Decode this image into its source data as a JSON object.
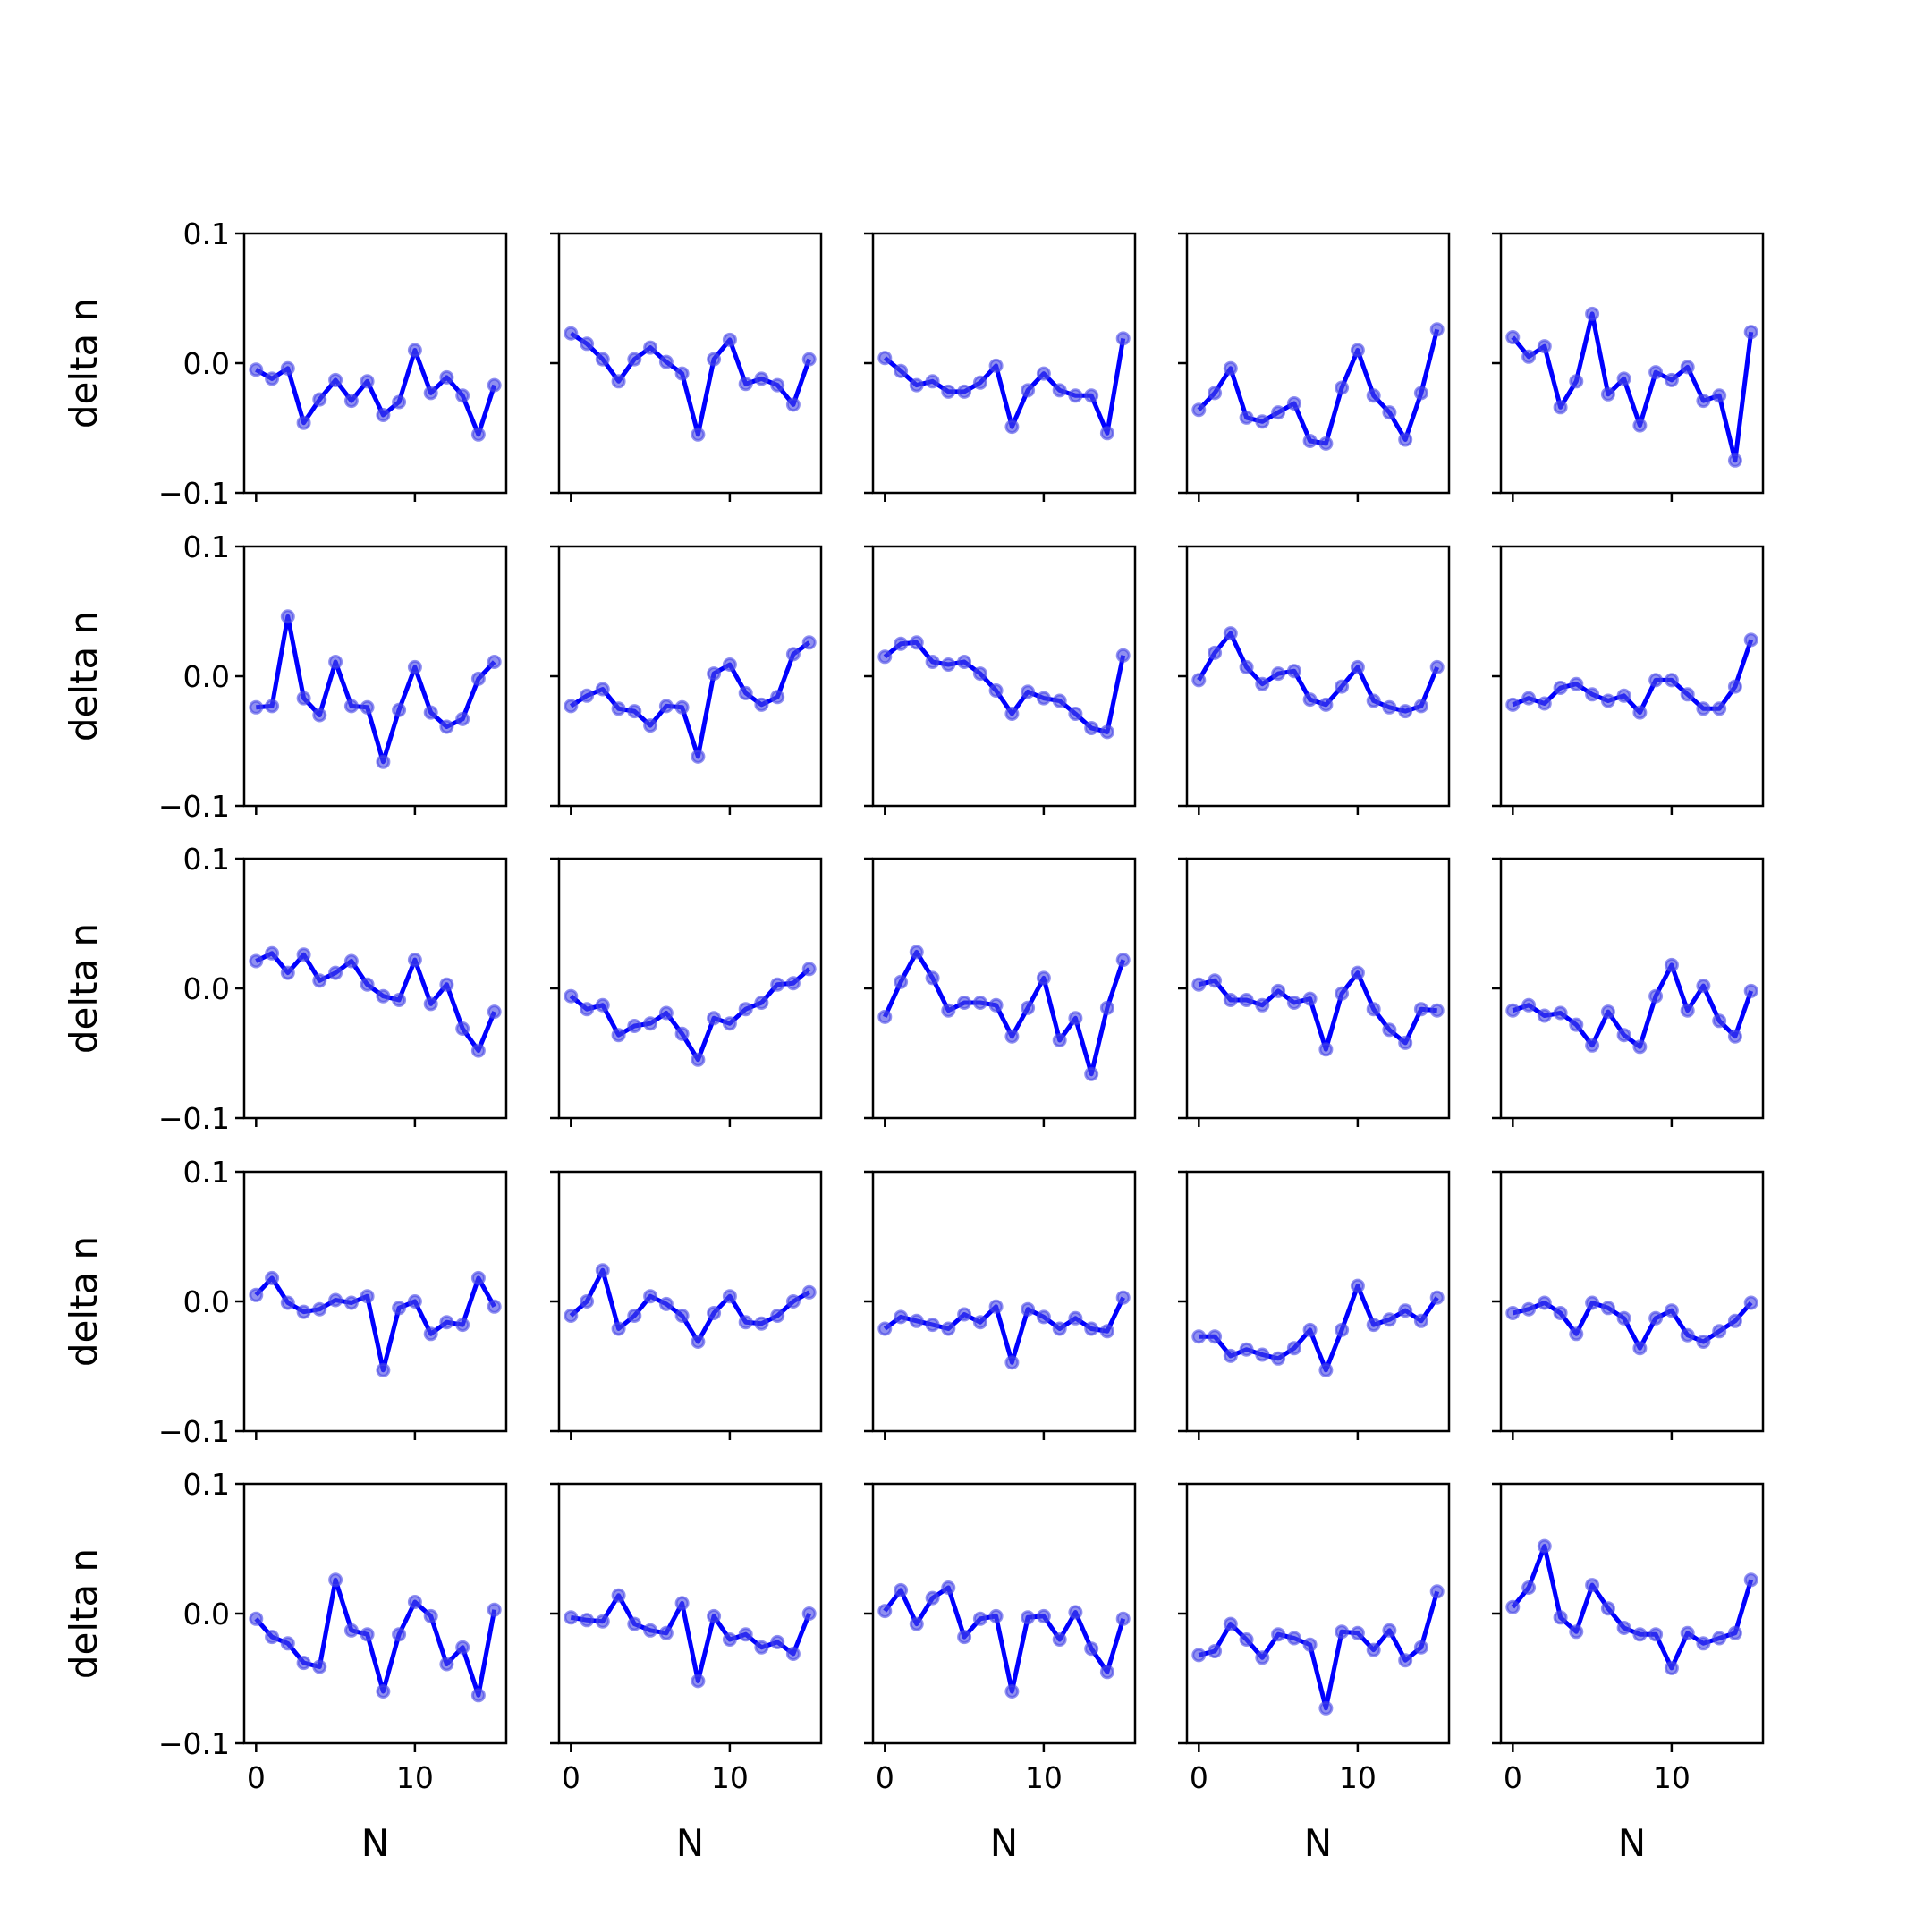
{
  "chart_data": {
    "type": "line",
    "layout": {
      "rows": 5,
      "cols": 5
    },
    "shared_x": true,
    "shared_y": true,
    "xlabel": "N",
    "ylabel": "delta n",
    "xlim": [
      -0.75,
      15.75
    ],
    "ylim": [
      -0.1,
      0.1
    ],
    "xticks": [
      0,
      10
    ],
    "yticks": [
      -0.1,
      0.0,
      0.1
    ],
    "xtick_labels": [
      "0",
      "10"
    ],
    "ytick_labels": [
      "−0.1",
      "0.0",
      "0.1"
    ],
    "x": [
      0,
      1,
      2,
      3,
      4,
      5,
      6,
      7,
      8,
      9,
      10,
      11,
      12,
      13,
      14,
      15
    ],
    "line_color": "#0000ff",
    "marker_color": "#4646e6",
    "grid": false,
    "panels": [
      {
        "values": [
          -0.005,
          -0.012,
          -0.004,
          -0.046,
          -0.028,
          -0.013,
          -0.029,
          -0.014,
          -0.04,
          -0.03,
          0.01,
          -0.023,
          -0.011,
          -0.025,
          -0.055,
          -0.017
        ]
      },
      {
        "values": [
          0.023,
          0.015,
          0.003,
          -0.014,
          0.003,
          0.012,
          0.001,
          -0.008,
          -0.055,
          0.003,
          0.018,
          -0.016,
          -0.012,
          -0.017,
          -0.032,
          0.003
        ]
      },
      {
        "values": [
          0.004,
          -0.006,
          -0.017,
          -0.014,
          -0.022,
          -0.022,
          -0.015,
          -0.002,
          -0.049,
          -0.021,
          -0.008,
          -0.021,
          -0.025,
          -0.025,
          -0.054,
          0.019
        ]
      },
      {
        "values": [
          -0.036,
          -0.023,
          -0.004,
          -0.042,
          -0.045,
          -0.038,
          -0.031,
          -0.06,
          -0.062,
          -0.019,
          0.01,
          -0.025,
          -0.038,
          -0.059,
          -0.023,
          0.026
        ]
      },
      {
        "values": [
          0.02,
          0.005,
          0.013,
          -0.034,
          -0.014,
          0.038,
          -0.024,
          -0.012,
          -0.048,
          -0.007,
          -0.013,
          -0.003,
          -0.029,
          -0.025,
          -0.075,
          0.024
        ]
      },
      {
        "values": [
          -0.024,
          -0.023,
          0.046,
          -0.017,
          -0.03,
          0.011,
          -0.023,
          -0.024,
          -0.066,
          -0.026,
          0.007,
          -0.028,
          -0.039,
          -0.033,
          -0.002,
          0.011
        ]
      },
      {
        "values": [
          -0.023,
          -0.015,
          -0.01,
          -0.025,
          -0.027,
          -0.038,
          -0.023,
          -0.024,
          -0.062,
          0.002,
          0.009,
          -0.013,
          -0.022,
          -0.016,
          0.017,
          0.026
        ]
      },
      {
        "values": [
          0.015,
          0.025,
          0.026,
          0.011,
          0.009,
          0.011,
          0.002,
          -0.011,
          -0.029,
          -0.012,
          -0.017,
          -0.019,
          -0.029,
          -0.04,
          -0.043,
          0.016
        ]
      },
      {
        "values": [
          -0.003,
          0.018,
          0.033,
          0.007,
          -0.006,
          0.002,
          0.004,
          -0.018,
          -0.022,
          -0.008,
          0.007,
          -0.019,
          -0.024,
          -0.027,
          -0.023,
          0.007
        ]
      },
      {
        "values": [
          -0.022,
          -0.017,
          -0.021,
          -0.009,
          -0.006,
          -0.014,
          -0.019,
          -0.015,
          -0.028,
          -0.003,
          -0.003,
          -0.014,
          -0.025,
          -0.025,
          -0.008,
          0.028
        ]
      },
      {
        "values": [
          0.021,
          0.027,
          0.012,
          0.026,
          0.006,
          0.012,
          0.021,
          0.003,
          -0.006,
          -0.009,
          0.022,
          -0.012,
          0.003,
          -0.031,
          -0.048,
          -0.018
        ]
      },
      {
        "values": [
          -0.006,
          -0.016,
          -0.013,
          -0.036,
          -0.029,
          -0.027,
          -0.019,
          -0.035,
          -0.055,
          -0.023,
          -0.027,
          -0.016,
          -0.011,
          0.003,
          0.004,
          0.015
        ]
      },
      {
        "values": [
          -0.022,
          0.005,
          0.028,
          0.008,
          -0.017,
          -0.011,
          -0.011,
          -0.013,
          -0.037,
          -0.015,
          0.008,
          -0.04,
          -0.023,
          -0.066,
          -0.015,
          0.022
        ]
      },
      {
        "values": [
          0.003,
          0.006,
          -0.009,
          -0.009,
          -0.013,
          -0.002,
          -0.011,
          -0.008,
          -0.047,
          -0.004,
          0.012,
          -0.016,
          -0.032,
          -0.042,
          -0.016,
          -0.017
        ]
      },
      {
        "values": [
          -0.017,
          -0.013,
          -0.021,
          -0.019,
          -0.028,
          -0.044,
          -0.018,
          -0.036,
          -0.045,
          -0.006,
          0.018,
          -0.017,
          0.002,
          -0.025,
          -0.037,
          -0.002
        ]
      },
      {
        "values": [
          0.005,
          0.018,
          -0.001,
          -0.008,
          -0.006,
          0.001,
          -0.001,
          0.004,
          -0.053,
          -0.005,
          0.0,
          -0.025,
          -0.016,
          -0.018,
          0.018,
          -0.004
        ]
      },
      {
        "values": [
          -0.011,
          0.0,
          0.024,
          -0.021,
          -0.011,
          0.004,
          -0.002,
          -0.011,
          -0.031,
          -0.009,
          0.004,
          -0.016,
          -0.017,
          -0.011,
          0.0,
          0.007
        ]
      },
      {
        "values": [
          -0.021,
          -0.012,
          -0.015,
          -0.018,
          -0.021,
          -0.01,
          -0.016,
          -0.004,
          -0.047,
          -0.006,
          -0.012,
          -0.021,
          -0.013,
          -0.021,
          -0.023,
          0.003
        ]
      },
      {
        "values": [
          -0.027,
          -0.027,
          -0.042,
          -0.037,
          -0.041,
          -0.044,
          -0.036,
          -0.022,
          -0.053,
          -0.022,
          0.012,
          -0.018,
          -0.014,
          -0.007,
          -0.015,
          0.003
        ]
      },
      {
        "values": [
          -0.009,
          -0.006,
          -0.001,
          -0.009,
          -0.025,
          -0.001,
          -0.005,
          -0.013,
          -0.036,
          -0.013,
          -0.007,
          -0.026,
          -0.031,
          -0.023,
          -0.015,
          -0.001
        ]
      },
      {
        "values": [
          -0.004,
          -0.018,
          -0.023,
          -0.038,
          -0.041,
          0.026,
          -0.013,
          -0.016,
          -0.06,
          -0.016,
          0.009,
          -0.002,
          -0.039,
          -0.026,
          -0.063,
          0.003
        ]
      },
      {
        "values": [
          -0.003,
          -0.005,
          -0.006,
          0.014,
          -0.008,
          -0.013,
          -0.015,
          0.008,
          -0.052,
          -0.002,
          -0.02,
          -0.016,
          -0.026,
          -0.022,
          -0.031,
          0.0
        ]
      },
      {
        "values": [
          0.002,
          0.018,
          -0.008,
          0.012,
          0.02,
          -0.018,
          -0.004,
          -0.002,
          -0.06,
          -0.003,
          -0.002,
          -0.02,
          0.001,
          -0.027,
          -0.045,
          -0.004
        ]
      },
      {
        "values": [
          -0.032,
          -0.029,
          -0.008,
          -0.02,
          -0.034,
          -0.016,
          -0.019,
          -0.024,
          -0.073,
          -0.014,
          -0.015,
          -0.028,
          -0.013,
          -0.036,
          -0.026,
          0.017
        ]
      },
      {
        "values": [
          0.005,
          0.02,
          0.052,
          -0.003,
          -0.014,
          0.022,
          0.004,
          -0.011,
          -0.016,
          -0.016,
          -0.042,
          -0.015,
          -0.023,
          -0.019,
          -0.015,
          0.026
        ]
      }
    ]
  }
}
